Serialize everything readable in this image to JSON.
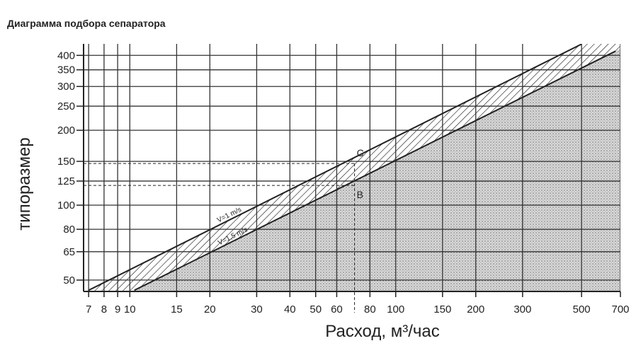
{
  "chart_data": {
    "type": "line",
    "title": "Диаграмма подбора сепаратора",
    "x_label": "Расход, м³/час",
    "y_label": "типоразмер",
    "xscale": "log",
    "yscale": "log",
    "grid": true,
    "xlim": [
      6.7,
      700
    ],
    "ylim": [
      45,
      445
    ],
    "xticks": [
      7,
      8,
      9,
      10,
      15,
      20,
      30,
      40,
      50,
      60,
      80,
      100,
      150,
      200,
      300,
      500,
      700
    ],
    "yticks": [
      50,
      65,
      80,
      100,
      125,
      150,
      200,
      250,
      300,
      350,
      400
    ],
    "series": [
      {
        "name": "V=1 m/s",
        "color": "#222222",
        "x": [
          7,
          500
        ],
        "values": [
          45.5,
          444
        ]
      },
      {
        "name": "V=1,5 m/s",
        "color": "#222222",
        "x": [
          10.4,
          671
        ],
        "values": [
          45.5,
          416
        ]
      }
    ],
    "annotations": [
      {
        "text": "C",
        "x": 70,
        "y": 147
      },
      {
        "text": "B",
        "x": 70,
        "y": 120
      }
    ]
  }
}
